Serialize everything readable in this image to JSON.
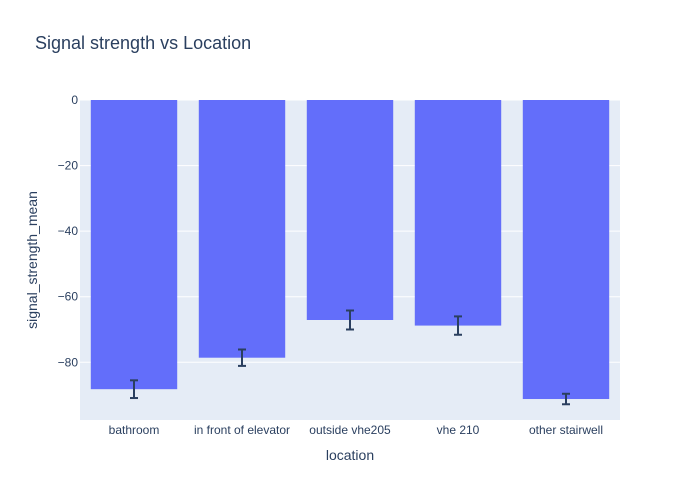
{
  "chart_data": {
    "type": "bar",
    "title": "Signal strength vs Location",
    "xlabel": "location",
    "ylabel": "signal_strength_mean",
    "categories": [
      "bathroom",
      "in front of elevator",
      "outside vhe205",
      "vhe 210",
      "other stairwell"
    ],
    "values": [
      -88.2,
      -78.6,
      -67.1,
      -68.8,
      -91.2
    ],
    "errors": [
      2.7,
      2.5,
      2.9,
      2.8,
      1.6
    ],
    "ylim": [
      -97.6,
      0
    ],
    "yticks": [
      0,
      -20,
      -40,
      -60,
      -80
    ],
    "ytick_labels": [
      "0",
      "−20",
      "−40",
      "−60",
      "−80"
    ],
    "grid": true,
    "bar_color": "#636efa",
    "plot_bg": "#e5ecf6",
    "text_color": "#2a3f5f",
    "error_color": "#2a3f5f"
  }
}
